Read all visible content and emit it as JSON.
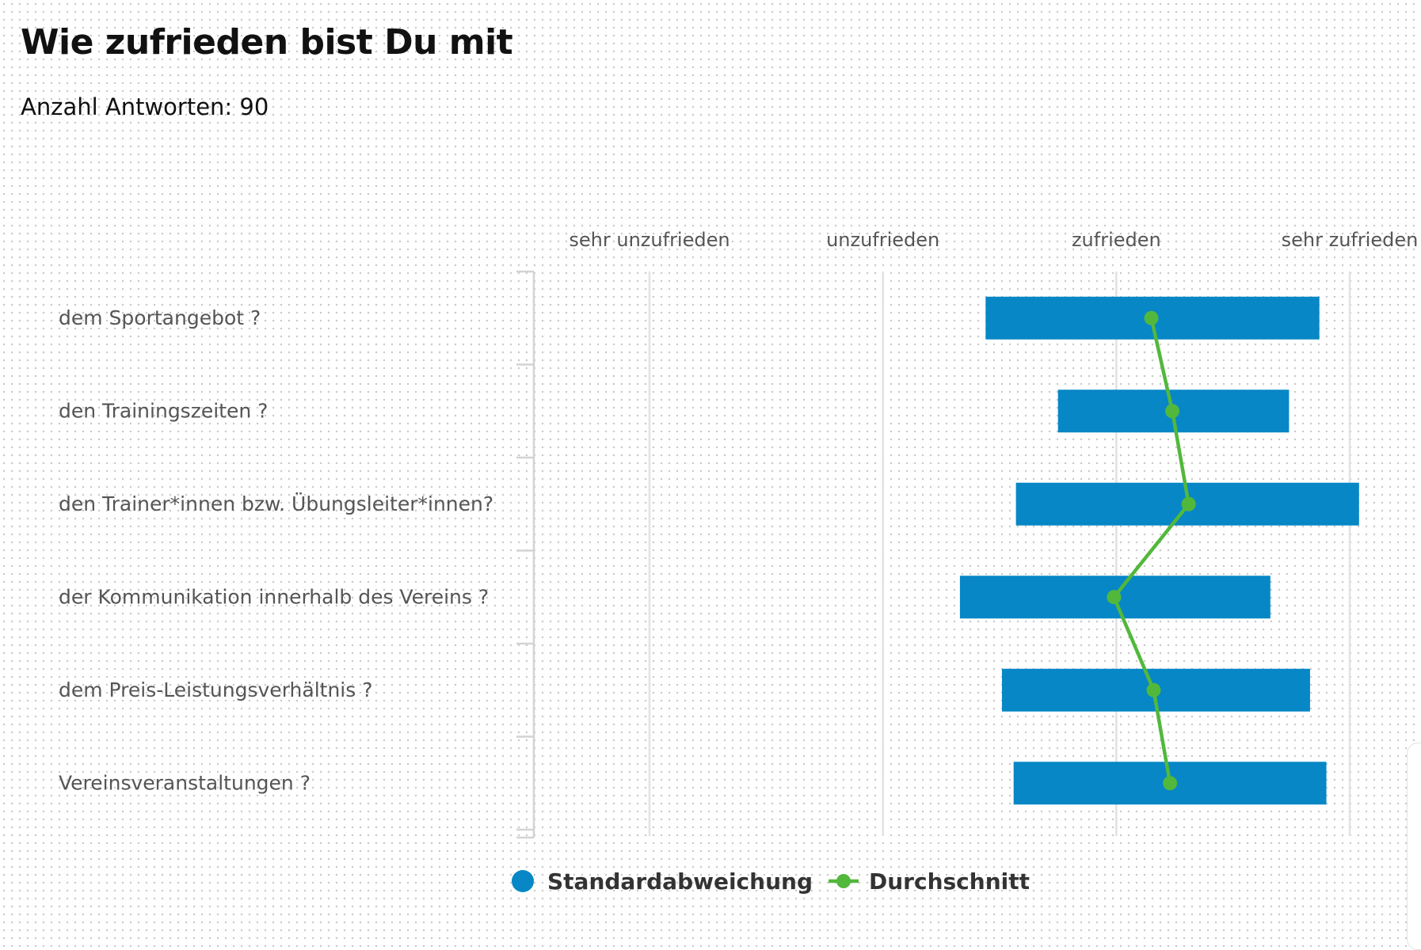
{
  "header": {
    "title": "Wie zufrieden bist Du mit",
    "subtitle": "Anzahl Antworten: 90"
  },
  "colors": {
    "bar": "#0787c5",
    "line": "#52b83c",
    "grid": "#e2e2e2",
    "axis": "#d3d3d3",
    "label": "#555555",
    "legend_text": "#333333"
  },
  "chart_data": {
    "type": "bar",
    "orientation": "horizontal",
    "x_ticks": [
      {
        "value": 1,
        "label": "sehr unzufrieden"
      },
      {
        "value": 2,
        "label": "unzufrieden"
      },
      {
        "value": 3,
        "label": "zufrieden"
      },
      {
        "value": 4,
        "label": "sehr zufrieden"
      }
    ],
    "xlim": [
      0.5,
      4.3
    ],
    "x_axis_position": "top",
    "grid": true,
    "categories": [
      "dem Sportangebot ?",
      "den Trainingszeiten ?",
      "den Trainer*innen bzw. Übungsleiter*innen?",
      "der Kommunikation innerhalb des Vereins ?",
      "dem Preis-Leistungsverhältnis ?",
      "Vereinsveranstaltungen ?"
    ],
    "series": [
      {
        "name": "Standardabweichung",
        "type": "range-bar",
        "ranges": [
          [
            2.44,
            3.87
          ],
          [
            2.75,
            3.74
          ],
          [
            2.57,
            4.04
          ],
          [
            2.33,
            3.66
          ],
          [
            2.51,
            3.83
          ],
          [
            2.56,
            3.9
          ]
        ]
      },
      {
        "name": "Durchschnitt",
        "type": "line",
        "values": [
          3.15,
          3.24,
          3.31,
          2.99,
          3.16,
          3.23
        ]
      }
    ],
    "legend": {
      "position": "bottom-center",
      "items": [
        {
          "label": "Standardabweichung",
          "marker": "circle"
        },
        {
          "label": "Durchschnitt",
          "marker": "line-dot"
        }
      ]
    }
  }
}
